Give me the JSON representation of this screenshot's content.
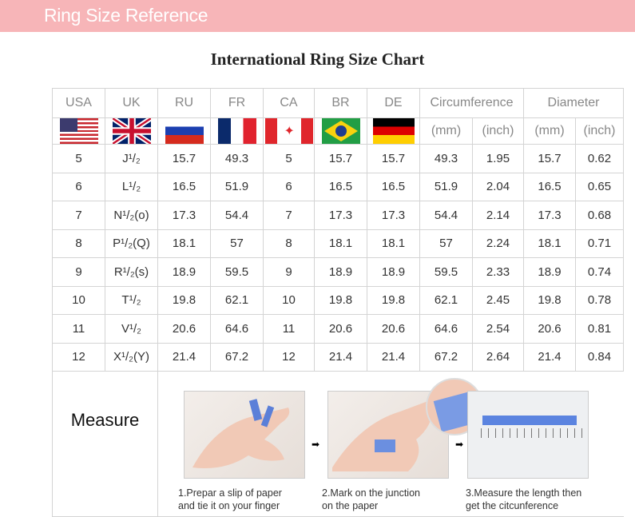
{
  "banner": "Ring Size Reference",
  "title": "International Ring Size Chart",
  "headers": [
    "USA",
    "UK",
    "RU",
    "FR",
    "CA",
    "BR",
    "DE",
    "Circumference",
    "Diameter"
  ],
  "flags": [
    "us-flag",
    "uk-flag",
    "russia-flag",
    "france-flag",
    "canada-flag",
    "brazil-flag",
    "germany-flag"
  ],
  "units": [
    "(mm)",
    "(inch)",
    "(mm)",
    "(inch)"
  ],
  "rows": [
    [
      "5",
      "J¹/₂",
      "15.7",
      "49.3",
      "5",
      "15.7",
      "15.7",
      "49.3",
      "1.95",
      "15.7",
      "0.62"
    ],
    [
      "6",
      "L¹/₂",
      "16.5",
      "51.9",
      "6",
      "16.5",
      "16.5",
      "51.9",
      "2.04",
      "16.5",
      "0.65"
    ],
    [
      "7",
      "N¹/₂(o)",
      "17.3",
      "54.4",
      "7",
      "17.3",
      "17.3",
      "54.4",
      "2.14",
      "17.3",
      "0.68"
    ],
    [
      "8",
      "P¹/₂(Q)",
      "18.1",
      "57",
      "8",
      "18.1",
      "18.1",
      "57",
      "2.24",
      "18.1",
      "0.71"
    ],
    [
      "9",
      "R¹/₂(s)",
      "18.9",
      "59.5",
      "9",
      "18.9",
      "18.9",
      "59.5",
      "2.33",
      "18.9",
      "0.74"
    ],
    [
      "10",
      "T¹/₂",
      "19.8",
      "62.1",
      "10",
      "19.8",
      "19.8",
      "62.1",
      "2.45",
      "19.8",
      "0.78"
    ],
    [
      "11",
      "V¹/₂",
      "20.6",
      "64.6",
      "11",
      "20.6",
      "20.6",
      "64.6",
      "2.54",
      "20.6",
      "0.81"
    ],
    [
      "12",
      "X¹/₂(Y)",
      "21.4",
      "67.2",
      "12",
      "21.4",
      "21.4",
      "67.2",
      "2.64",
      "21.4",
      "0.84"
    ]
  ],
  "measure": {
    "label": "Measure",
    "steps": [
      {
        "line1": "1.Prepar a slip of paper",
        "line2": "and tie it on your finger"
      },
      {
        "line1": "2.Mark on the junction",
        "line2": "on the paper"
      },
      {
        "line1": "3.Measure the length then",
        "line2": "get the citcunference"
      }
    ],
    "arrow": "➡"
  }
}
